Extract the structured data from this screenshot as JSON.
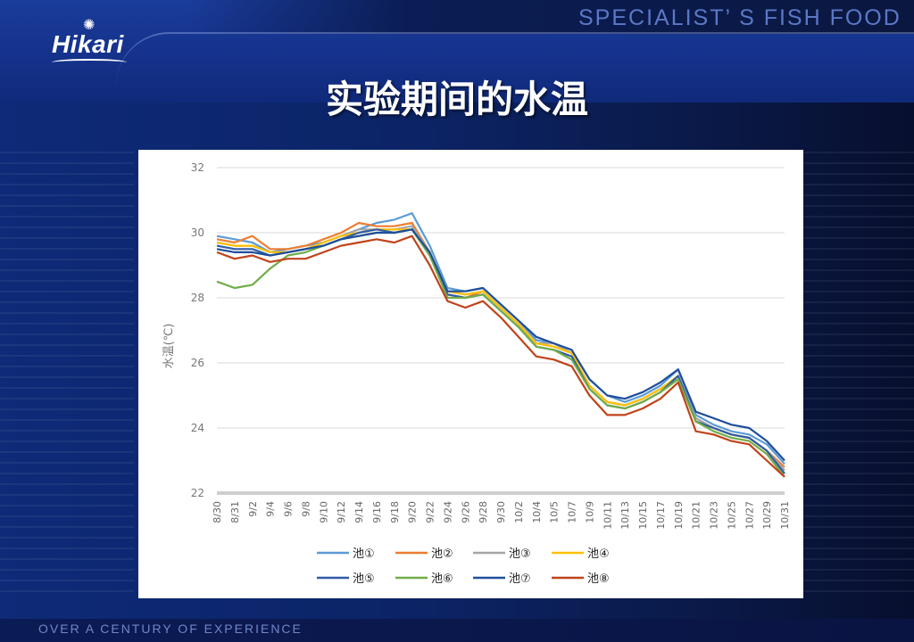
{
  "brand": {
    "logo_text": "Hikari",
    "tagline": "SPECIALIST’ S  FISH FOOD",
    "footer": "OVER A CENTURY OF EXPERIENCE"
  },
  "slide_title": "实验期间的水温",
  "chart_data": {
    "type": "line",
    "title": "",
    "ylabel": "水温(℃)",
    "xlabel": "",
    "ylim": [
      22,
      32
    ],
    "y_ticks": [
      22,
      24,
      26,
      28,
      30,
      32
    ],
    "x_tick_labels": [
      "8/30",
      "8/31",
      "9/2",
      "9/4",
      "9/6",
      "9/8",
      "9/10",
      "9/12",
      "9/14",
      "9/16",
      "9/18",
      "9/20",
      "9/22",
      "9/24",
      "9/26",
      "9/28",
      "9/30",
      "10/2",
      "10/4",
      "10/5",
      "10/7",
      "10/9",
      "10/11",
      "10/13",
      "10/15",
      "10/17",
      "10/19",
      "10/21",
      "10/23",
      "10/25",
      "10/27",
      "10/29",
      "10/31"
    ],
    "grid": "horizontal",
    "legend_position": "bottom",
    "x": [
      "8/30",
      "8/31",
      "9/2",
      "9/4",
      "9/6",
      "9/8",
      "9/10",
      "9/12",
      "9/14",
      "9/16",
      "9/18",
      "9/20",
      "9/22",
      "9/24",
      "9/26",
      "9/28",
      "9/30",
      "10/2",
      "10/4",
      "10/5",
      "10/7",
      "10/9",
      "10/11",
      "10/13",
      "10/15",
      "10/17",
      "10/19",
      "10/21",
      "10/23",
      "10/25",
      "10/27",
      "10/29",
      "10/31"
    ],
    "series": [
      {
        "name": "池①",
        "color": "#5b9bd5",
        "values": [
          29.9,
          29.8,
          29.7,
          29.4,
          29.5,
          29.6,
          29.7,
          29.9,
          30.1,
          30.3,
          30.4,
          30.6,
          29.6,
          28.3,
          28.2,
          28.3,
          27.8,
          27.3,
          26.7,
          26.6,
          26.4,
          25.5,
          25.0,
          24.8,
          25.0,
          25.3,
          25.8,
          24.4,
          24.1,
          23.9,
          23.8,
          23.5,
          22.9
        ]
      },
      {
        "name": "池②",
        "color": "#ed7d31",
        "values": [
          29.8,
          29.7,
          29.9,
          29.5,
          29.5,
          29.6,
          29.8,
          30.0,
          30.3,
          30.2,
          30.2,
          30.3,
          29.4,
          28.1,
          28.0,
          28.2,
          27.7,
          27.2,
          26.6,
          26.5,
          26.3,
          25.3,
          24.8,
          24.7,
          24.9,
          25.2,
          25.6,
          24.2,
          24.0,
          23.8,
          23.7,
          23.3,
          22.8
        ]
      },
      {
        "name": "池③",
        "color": "#a5a5a5",
        "values": [
          29.7,
          29.6,
          29.6,
          29.4,
          29.4,
          29.5,
          29.7,
          29.9,
          30.1,
          30.1,
          30.1,
          30.2,
          29.4,
          28.2,
          28.1,
          28.2,
          27.7,
          27.2,
          26.6,
          26.6,
          26.3,
          25.3,
          24.8,
          24.7,
          24.9,
          25.2,
          25.6,
          24.3,
          24.0,
          23.8,
          23.7,
          23.3,
          22.7
        ]
      },
      {
        "name": "池④",
        "color": "#ffc000",
        "values": [
          29.7,
          29.6,
          29.6,
          29.4,
          29.4,
          29.5,
          29.7,
          29.9,
          30.0,
          30.1,
          30.1,
          30.1,
          29.4,
          28.2,
          28.1,
          28.2,
          27.7,
          27.2,
          26.6,
          26.5,
          26.3,
          25.3,
          24.8,
          24.7,
          24.9,
          25.2,
          25.6,
          24.2,
          24.0,
          23.8,
          23.7,
          23.3,
          22.6
        ]
      },
      {
        "name": "池⑤",
        "color": "#2e5ca8",
        "values": [
          29.6,
          29.5,
          29.5,
          29.3,
          29.4,
          29.5,
          29.6,
          29.8,
          30.0,
          30.1,
          30.0,
          30.1,
          29.3,
          28.1,
          28.0,
          28.1,
          27.6,
          27.1,
          26.5,
          26.4,
          26.2,
          25.2,
          24.7,
          24.6,
          24.8,
          25.1,
          25.6,
          24.2,
          24.0,
          23.8,
          23.7,
          23.3,
          22.6
        ]
      },
      {
        "name": "池⑥",
        "color": "#70ad47",
        "values": [
          28.5,
          28.3,
          28.4,
          28.9,
          29.3,
          29.4,
          29.6,
          29.8,
          29.9,
          30.0,
          30.0,
          30.1,
          29.3,
          28.0,
          28.0,
          28.1,
          27.6,
          27.1,
          26.5,
          26.4,
          26.1,
          25.2,
          24.7,
          24.6,
          24.8,
          25.1,
          25.5,
          24.2,
          23.9,
          23.7,
          23.6,
          23.2,
          22.5
        ]
      },
      {
        "name": "池⑦",
        "color": "#1f4e9a",
        "values": [
          29.5,
          29.4,
          29.4,
          29.3,
          29.4,
          29.5,
          29.6,
          29.8,
          29.9,
          30.0,
          30.0,
          30.1,
          29.4,
          28.2,
          28.2,
          28.3,
          27.8,
          27.3,
          26.8,
          26.6,
          26.4,
          25.5,
          25.0,
          24.9,
          25.1,
          25.4,
          25.8,
          24.5,
          24.3,
          24.1,
          24.0,
          23.6,
          23.0
        ]
      },
      {
        "name": "池⑧",
        "color": "#c0431a",
        "values": [
          29.4,
          29.2,
          29.3,
          29.1,
          29.2,
          29.2,
          29.4,
          29.6,
          29.7,
          29.8,
          29.7,
          29.9,
          29.0,
          27.9,
          27.7,
          27.9,
          27.4,
          26.8,
          26.2,
          26.1,
          25.9,
          25.0,
          24.4,
          24.4,
          24.6,
          24.9,
          25.4,
          23.9,
          23.8,
          23.6,
          23.5,
          23.0,
          22.5
        ]
      }
    ]
  }
}
